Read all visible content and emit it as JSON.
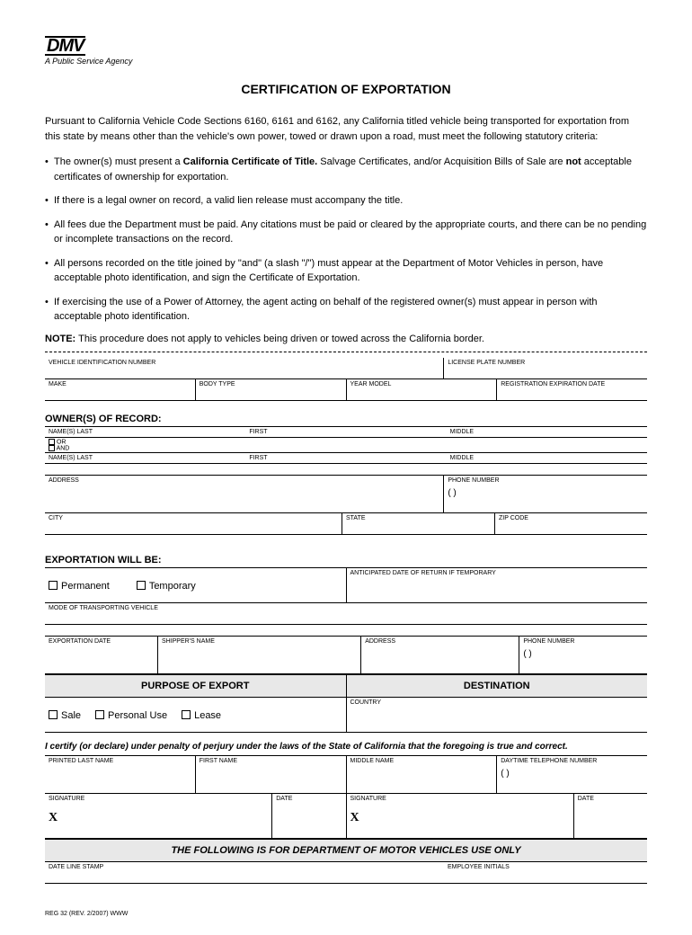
{
  "logo": {
    "text": "DMV",
    "tagline": "A Public Service Agency"
  },
  "title": "CERTIFICATION OF EXPORTATION",
  "intro": "Pursuant to California Vehicle Code Sections 6160, 6161 and 6162, any California titled vehicle being transported for exportation from this state by means other than the vehicle's own power, towed or drawn upon a road, must meet the following statutory criteria:",
  "criteria": [
    "The owner(s) must present a <b>California Certificate of Title.</b> Salvage Certificates, and/or Acquisition Bills of Sale are <b>not</b> acceptable certificates of ownership for exportation.",
    "If there is a legal owner on record, a valid lien release must accompany the title.",
    "All fees due the Department must be paid. Any citations must be paid or cleared by the appropriate courts, and there can be no pending or incomplete transactions on the record.",
    "All persons recorded on the title joined by \"and\" (a slash \"/\") must appear at the Department of Motor Vehicles in person, have acceptable photo identification, and sign the Certificate of Exportation.",
    "If exercising the use of a Power of Attorney, the agent acting on behalf of the registered owner(s) must appear in person with acceptable photo identification."
  ],
  "note_label": "NOTE:",
  "note_text": "This procedure does not apply to vehicles being driven or towed across the California border.",
  "vehicle": {
    "vin": "VEHICLE IDENTIFICATION NUMBER",
    "plate": "LICENSE PLATE NUMBER",
    "make": "MAKE",
    "body": "BODY TYPE",
    "year": "YEAR MODEL",
    "regexp": "REGISTRATION EXPIRATION DATE"
  },
  "owners": {
    "header": "OWNER(S) OF RECORD:",
    "last": "NAME(S)  LAST",
    "first": "FIRST",
    "middle": "MIDDLE",
    "or": "OR",
    "and": "AND",
    "address": "ADDRESS",
    "phone": "PHONE NUMBER",
    "city": "CITY",
    "state": "STATE",
    "zip": "ZIP CODE"
  },
  "export": {
    "header": "EXPORTATION WILL BE:",
    "permanent": "Permanent",
    "temporary": "Temporary",
    "return_date": "ANTICIPATED DATE OF RETURN IF TEMPORARY",
    "mode": "MODE OF TRANSPORTING VEHICLE",
    "date": "EXPORTATION DATE",
    "shipper": "SHIPPER'S NAME",
    "address": "ADDRESS",
    "phone": "PHONE NUMBER"
  },
  "purpose": {
    "header1": "PURPOSE OF EXPORT",
    "header2": "DESTINATION",
    "sale": "Sale",
    "personal": "Personal Use",
    "lease": "Lease",
    "country": "COUNTRY"
  },
  "cert_text": "I certify (or declare) under penalty of perjury under the laws of the State of California that the foregoing is true and correct.",
  "sig": {
    "printed_last": "PRINTED LAST NAME",
    "first": "FIRST NAME",
    "middle": "MIDDLE NAME",
    "phone": "DAYTIME TELEPHONE NUMBER",
    "signature": "SIGNATURE",
    "date": "DATE",
    "x": "X"
  },
  "dmv_only": "THE FOLLOWING IS FOR DEPARTMENT OF MOTOR VEHICLES USE ONLY",
  "dmv_fields": {
    "stamp": "DATE LINE STAMP",
    "initials": "EMPLOYEE INITIALS"
  },
  "footer": "REG 32 (REV. 2/2007) WWW",
  "paren": "(          )"
}
